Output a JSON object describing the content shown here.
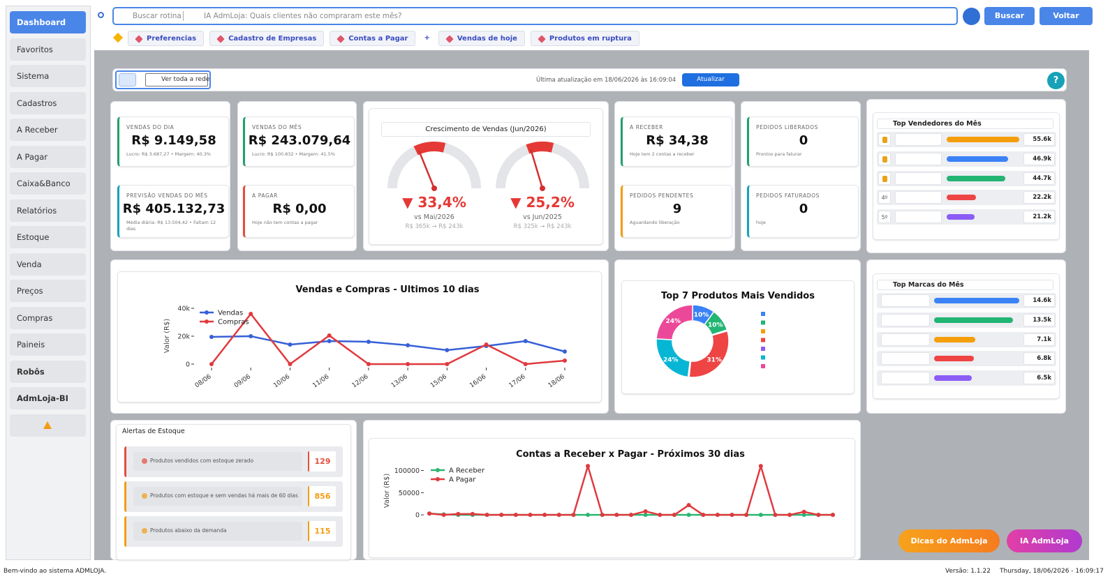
{
  "sidebar": {
    "items": [
      "Dashboard",
      "Favoritos",
      "Sistema",
      "Cadastros",
      "A Receber",
      "A Pagar",
      "Caixa&Banco",
      "Relatórios",
      "Estoque",
      "Venda",
      "Preços",
      "Compras",
      "Paineis",
      "Robôs",
      "AdmLoja-BI"
    ]
  },
  "topbar": {
    "search_placeholder": "Buscar rotina",
    "ai_prompt": "IA AdmLoja: Quais clientes não compraram este mês?",
    "buttons": [
      "Buscar",
      "Voltar"
    ]
  },
  "tabs": [
    "Preferencias",
    "Cadastro de Empresas",
    "Contas a Pagar",
    "+",
    "Vendas de hoje",
    "Produtos em ruptura"
  ],
  "toolbar": {
    "network": "Ver toda a rede",
    "updated": "Última atualização em 18/06/2026 às 16:09:04",
    "refresh": "Atualizar",
    "help": "?"
  },
  "kpis": [
    {
      "label": "VENDAS DO DIA",
      "value": "R$ 9.149,58",
      "note": "Lucro: R$ 3.687,27 • Margem: 40.3%",
      "color": "#22a06b"
    },
    {
      "label": "PREVISÃO VENDAS DO MÊS",
      "value": "R$ 405.132,73",
      "note": "Média diária: R$ 13.504,42 • Faltam 12 dias",
      "color": "#17a2b8"
    },
    {
      "label": "VENDAS DO MÊS",
      "value": "R$ 243.079,64",
      "note": "Lucro: R$ 100.832 • Margem: 41.5%",
      "color": "#22a06b"
    },
    {
      "label": "A PAGAR",
      "value": "R$ 0,00",
      "note": "Hoje não tem contas a pagar",
      "color": "#e74c3c"
    },
    {
      "label": "A RECEBER",
      "value": "R$ 34,38",
      "note": "Hoje tem 2 contas a receber",
      "color": "#22a06b"
    },
    {
      "label": "PEDIDOS PENDENTES",
      "value": "9",
      "note": "Aguardando liberação",
      "color": "#f39c12"
    },
    {
      "label": "PEDIDOS LIBERADOS",
      "value": "0",
      "note": "Prontos para faturar",
      "color": "#22a06b"
    },
    {
      "label": "PEDIDOS FATURADOS",
      "value": "0",
      "note": "hoje",
      "color": "#17a2b8"
    }
  ],
  "growth": {
    "title": "Crescimento de Vendas (Jun/2026)",
    "gauges": [
      {
        "value": -33.4,
        "label": "▼ 33,4%",
        "compare": "vs Mai/2026",
        "detail": "R$ 365k → R$ 243k"
      },
      {
        "value": -25.2,
        "label": "▼ 25,2%",
        "compare": "vs Jun/2025",
        "detail": "R$ 325k → R$ 243k"
      }
    ]
  },
  "top_sellers": {
    "title": "Top Vendedores do Mês",
    "ranks": [
      null,
      null,
      null,
      "4º",
      "5º"
    ],
    "values": [
      55600,
      46900,
      44700,
      22200,
      21200
    ],
    "value_labels": [
      "55.6k",
      "46.9k",
      "44.7k",
      "22.2k",
      "21.2k"
    ],
    "colors": [
      "#f59e0b",
      "#3b82f6",
      "#22b573",
      "#ef4444",
      "#8b5cf6"
    ]
  },
  "top_brands": {
    "title": "Top Marcas do Mês",
    "values": [
      14600,
      13500,
      7100,
      6800,
      6500
    ],
    "value_labels": [
      "14.6k",
      "13.5k",
      "7.1k",
      "6.8k",
      "6.5k"
    ],
    "colors": [
      "#3b82f6",
      "#22b573",
      "#f59e0b",
      "#ef4444",
      "#8b5cf6"
    ]
  },
  "sales_chart": {
    "type": "line",
    "title": "Vendas e Compras - Ultimos 10 dias",
    "ylabel": "Valor (R$)",
    "categories": [
      "08/06",
      "09/06",
      "10/06",
      "11/06",
      "12/06",
      "13/06",
      "15/06",
      "16/06",
      "17/06",
      "18/06"
    ],
    "series": [
      {
        "name": "Vendas",
        "color": "#3760d8",
        "values": [
          19500,
          20000,
          14000,
          16500,
          16000,
          13500,
          10000,
          13000,
          16500,
          9000
        ]
      },
      {
        "name": "Compras",
        "color": "#e0393e",
        "values": [
          0,
          36000,
          0,
          20500,
          0,
          0,
          0,
          14000,
          0,
          2500
        ]
      }
    ],
    "ylim": [
      -2500,
      43000
    ],
    "yticks": [
      0,
      {
        "value": 20000,
        "label": "20k"
      },
      {
        "value": 40000,
        "label": "40k"
      }
    ]
  },
  "products_chart": {
    "type": "pie",
    "title": "Top 7 Produtos Mais Vendidos",
    "values": [
      10,
      10,
      0.5,
      31,
      0.5,
      24,
      24
    ],
    "value_labels": [
      "10%",
      "10%",
      null,
      "31%",
      null,
      "24%",
      "24%"
    ],
    "colors": [
      "#3b82f6",
      "#22b573",
      "#f59e0b",
      "#ef4444",
      "#8b5cf6",
      "#06b6d4",
      "#ec4899"
    ]
  },
  "stock_alerts": {
    "title": "Alertas de Estoque",
    "items": [
      {
        "text": "Produtos vendidos com estoque zerado",
        "count": 129,
        "color": "#e74c3c"
      },
      {
        "text": "Produtos com estoque e sem vendas há mais de 60 dias",
        "count": 856,
        "color": "#f39c12"
      },
      {
        "text": "Produtos abaixo da demanda",
        "count": 115,
        "color": "#f39c12"
      }
    ]
  },
  "accounts_chart": {
    "type": "line",
    "title": "Contas a Receber x Pagar - Próximos 30 dias",
    "ylabel": "Valor (R$)",
    "series": [
      {
        "name": "A Receber",
        "color": "#2bb673",
        "values": [
          3000,
          1000,
          0,
          0,
          0,
          0,
          0,
          0,
          0,
          0,
          0,
          0,
          0,
          0,
          0,
          0,
          0,
          0,
          0,
          0,
          0,
          0,
          0,
          0,
          0,
          0,
          0,
          0,
          0
        ]
      },
      {
        "name": "A Pagar",
        "color": "#e0393e",
        "values": [
          3000,
          0,
          2000,
          2000,
          0,
          0,
          0,
          0,
          0,
          0,
          0,
          110000,
          0,
          0,
          0,
          8000,
          0,
          0,
          22000,
          0,
          0,
          0,
          0,
          110000,
          0,
          0,
          7000,
          0,
          0
        ]
      }
    ],
    "ylim": [
      -6000,
      115000
    ],
    "yticks": [
      0,
      50000,
      100000
    ]
  },
  "footer": {
    "buttons": [
      "Dicas do AdmLoja",
      "IA AdmLoja"
    ],
    "status": "Bem-vindo ao sistema ADMLOJA.",
    "version": "Versão: 1.1.22",
    "datetime": "Thursday, 18/06/2026 - 16:09:17"
  }
}
